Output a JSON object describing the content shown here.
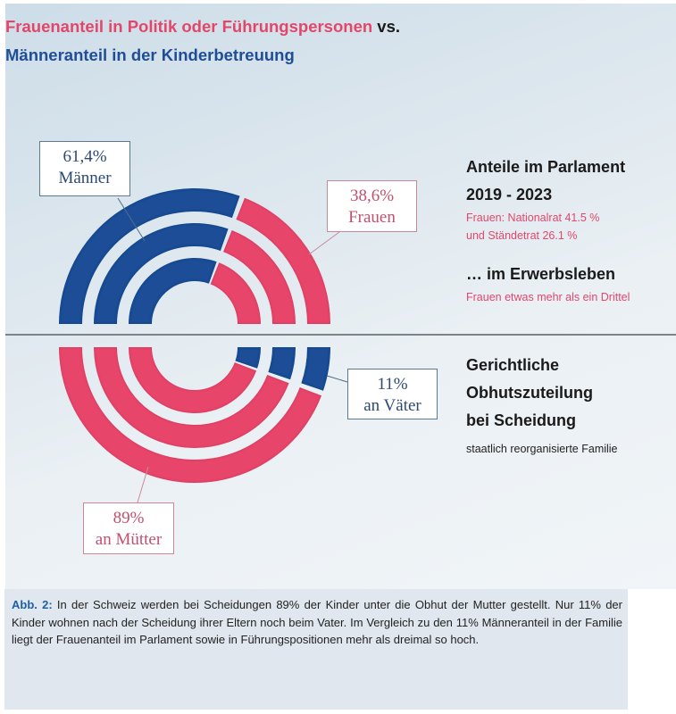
{
  "title": {
    "part_red": "Frauenanteil in Politik oder Führungspersonen",
    "part_vs": " vs.",
    "part_blue": "Männeranteil in der Kinderbetreuung"
  },
  "colors": {
    "men": "#1f4e96",
    "women": "#e8456b",
    "divider": "#7c8487"
  },
  "chart_data": [
    {
      "type": "pie",
      "subtype": "semi-donut-rings (upper half)",
      "title": "Anteile im Parlament 2019-2023",
      "rings": 3,
      "series": [
        {
          "name": "Männer",
          "value": 61.4,
          "color": "#1f4e96"
        },
        {
          "name": "Frauen",
          "value": 38.6,
          "color": "#e8456b"
        }
      ],
      "labels": [
        {
          "value_text": "61,4%",
          "name_text": "Männer",
          "series": "Männer"
        },
        {
          "value_text": "38,6%",
          "name_text": "Frauen",
          "series": "Frauen"
        }
      ]
    },
    {
      "type": "pie",
      "subtype": "semi-donut-rings (lower half)",
      "title": "Gerichtliche Obhutszuteilung bei Scheidung",
      "rings": 3,
      "series": [
        {
          "name": "an Mütter",
          "value": 89,
          "color": "#e8456b"
        },
        {
          "name": "an Väter",
          "value": 11,
          "color": "#1f4e96"
        }
      ],
      "labels": [
        {
          "value_text": "89%",
          "name_text": "an Mütter",
          "series": "an Mütter"
        },
        {
          "value_text": "11%",
          "name_text": "an Väter",
          "series": "an Väter"
        }
      ]
    }
  ],
  "side_top": {
    "heading_line1": "Anteile im Parlament",
    "heading_line2": "2019 - 2023",
    "note_line1": "Frauen: Nationalrat 41.5 %",
    "note_line2": "und Ständetrat 26.1 %",
    "heading2": "… im Erwerbsleben",
    "note2": "Frauen etwas mehr als ein Drittel"
  },
  "side_bottom": {
    "heading_line1": "Gerichtliche",
    "heading_line2": "Obhutszuteilung",
    "heading_line3": "bei Scheidung",
    "note": "staatlich reorganisierte Familie"
  },
  "caption": {
    "label": "Abb. 2:",
    "text": " In der Schweiz werden bei Scheidungen 89% der Kinder unter die Obhut der Mutter gestellt. Nur 11% der Kinder wohnen nach der Scheidung ihrer Eltern noch beim Vater. Im Vergleich zu den 11% Männeranteil in der Familie liegt der Frauenanteil im Parlament sowie in Führungspositionen mehr als dreimal so hoch."
  }
}
